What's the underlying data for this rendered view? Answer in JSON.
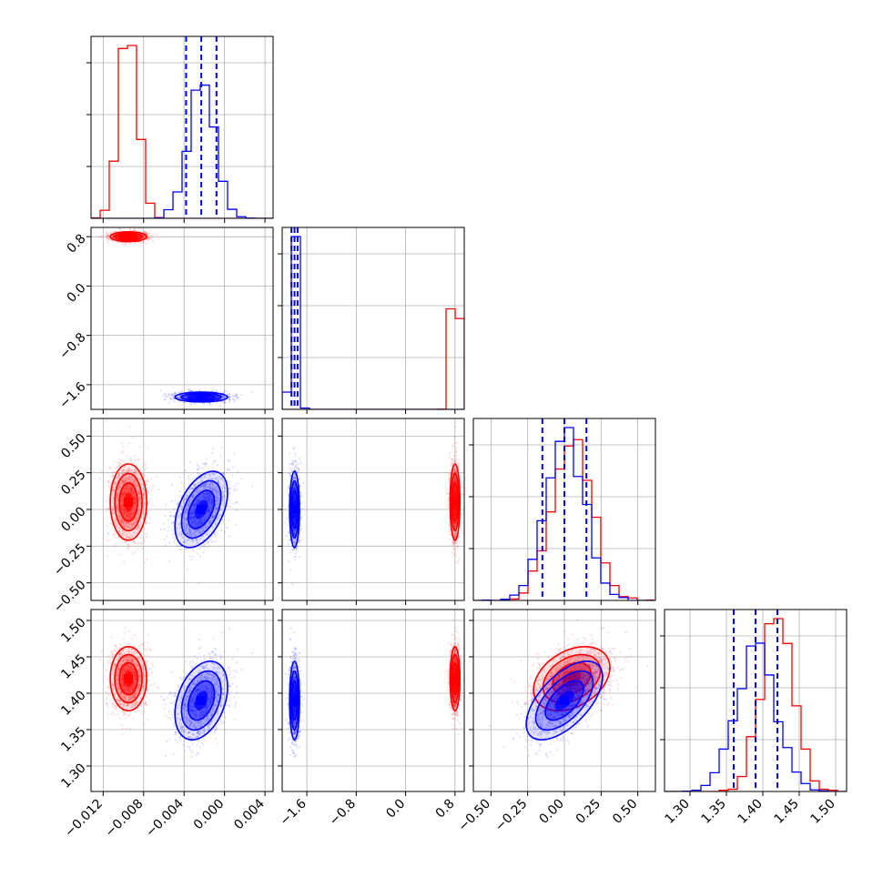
{
  "chart_data": {
    "type": "corner",
    "parameters": [
      {
        "id": "p1",
        "ticks": [
          -0.012,
          -0.008,
          -0.004,
          0.0,
          0.004
        ],
        "tick_labels": [
          "−0.012",
          "−0.008",
          "−0.004",
          "0.000",
          "0.004"
        ],
        "range": [
          -0.0132,
          0.0048
        ]
      },
      {
        "id": "p2",
        "ticks": [
          -1.6,
          -0.8,
          0.0,
          0.8
        ],
        "tick_labels": [
          "−1.6",
          "−0.8",
          "0.0",
          "0.8"
        ],
        "range": [
          -2.0,
          0.95
        ]
      },
      {
        "id": "p3",
        "ticks": [
          -0.5,
          -0.25,
          0.0,
          0.25,
          0.5
        ],
        "tick_labels": [
          "−0.50",
          "−0.25",
          "0.00",
          "0.25",
          "0.50"
        ],
        "range": [
          -0.62,
          0.62
        ]
      },
      {
        "id": "p4",
        "ticks": [
          1.3,
          1.35,
          1.4,
          1.45,
          1.5
        ],
        "tick_labels": [
          "1.30",
          "1.35",
          "1.40",
          "1.45",
          "1.50"
        ],
        "range": [
          1.265,
          1.515
        ]
      }
    ],
    "series": [
      {
        "color": "#ff0000",
        "mean": [
          -0.0095,
          0.8,
          0.05,
          1.42
        ],
        "sd": [
          0.0009,
          0.04,
          0.13,
          0.022
        ],
        "corr": [
          [
            1,
            0,
            0,
            0
          ],
          [
            0,
            1,
            0,
            0
          ],
          [
            0,
            0,
            1,
            0.35
          ],
          [
            0,
            0,
            0.35,
            1
          ]
        ],
        "quantile_lines": false
      },
      {
        "color": "#0000ff",
        "mean": [
          -0.0023,
          -1.8,
          0.0,
          1.39
        ],
        "sd": [
          0.0013,
          0.04,
          0.13,
          0.027
        ],
        "corr": [
          [
            1,
            0,
            0.45,
            0.35
          ],
          [
            0,
            1,
            0,
            0
          ],
          [
            0.45,
            0,
            1,
            0.6
          ],
          [
            0.35,
            0,
            0.6,
            1
          ]
        ],
        "quantile_lines": true,
        "quantiles": [
          [
            -0.0038,
            -0.0023,
            -0.0008
          ],
          [
            -1.85,
            -1.8,
            -1.75
          ],
          [
            -0.15,
            0.0,
            0.15
          ],
          [
            1.36,
            1.39,
            1.42
          ]
        ]
      }
    ],
    "grid": true,
    "legend": "none"
  }
}
